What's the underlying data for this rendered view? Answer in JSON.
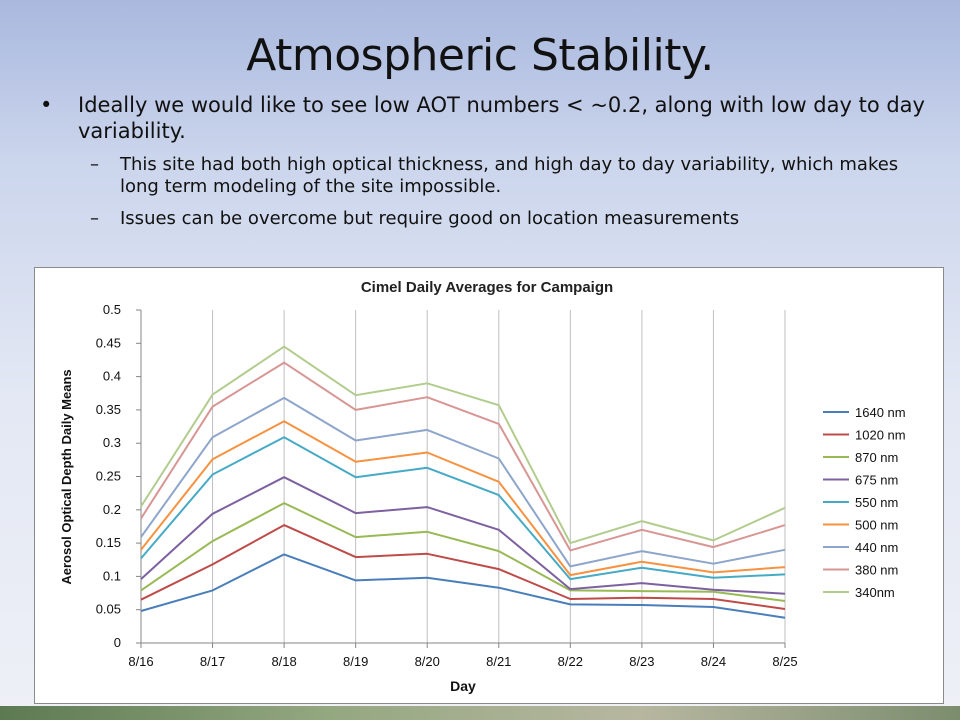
{
  "slide": {
    "title": "Atmospheric Stability.",
    "bullet1": "Ideally we would like to see low AOT numbers < ~0.2, along with low day to day variability.",
    "sub1": "This site had both high optical thickness, and high day to day variability, which makes long term modeling of the site impossible.",
    "sub2": "Issues can be overcome but require good on location measurements",
    "bullet_glyph": "•",
    "dash_glyph": "–"
  },
  "chart_data": {
    "type": "line",
    "title": "Cimel Daily Averages for Campaign",
    "xlabel": "Day",
    "ylabel": "Aerosol Optical Depth Daily Means",
    "categories": [
      "8/16",
      "8/17",
      "8/18",
      "8/19",
      "8/20",
      "8/21",
      "8/22",
      "8/23",
      "8/24",
      "8/25"
    ],
    "ylim": [
      0,
      0.5
    ],
    "yticks": [
      0,
      0.05,
      0.1,
      0.15,
      0.2,
      0.25,
      0.3,
      0.35,
      0.4,
      0.45,
      0.5
    ],
    "ytick_labels": [
      "0",
      "0.05",
      "0.1",
      "0.15",
      "0.2",
      "0.25",
      "0.3",
      "0.35",
      "0.4",
      "0.45",
      "0.5"
    ],
    "grid": "vertical",
    "legend": "right",
    "series": [
      {
        "name": "1640 nm",
        "color": "#4a7ebb",
        "values": [
          0.048,
          0.079,
          0.133,
          0.094,
          0.098,
          0.083,
          0.058,
          0.057,
          0.054,
          0.038
        ]
      },
      {
        "name": "1020 nm",
        "color": "#be4b48",
        "values": [
          0.065,
          0.118,
          0.177,
          0.129,
          0.134,
          0.111,
          0.066,
          0.068,
          0.066,
          0.051
        ]
      },
      {
        "name": "870 nm",
        "color": "#98b954",
        "values": [
          0.079,
          0.153,
          0.21,
          0.159,
          0.167,
          0.138,
          0.079,
          0.078,
          0.077,
          0.063
        ]
      },
      {
        "name": "675 nm",
        "color": "#7d60a0",
        "values": [
          0.096,
          0.194,
          0.249,
          0.195,
          0.204,
          0.17,
          0.081,
          0.09,
          0.08,
          0.074
        ]
      },
      {
        "name": "550 nm",
        "color": "#46aac5",
        "values": [
          0.127,
          0.253,
          0.309,
          0.249,
          0.263,
          0.222,
          0.096,
          0.113,
          0.098,
          0.103
        ]
      },
      {
        "name": "500 nm",
        "color": "#f69240",
        "values": [
          0.14,
          0.276,
          0.333,
          0.272,
          0.286,
          0.242,
          0.102,
          0.122,
          0.106,
          0.114
        ]
      },
      {
        "name": "440 nm",
        "color": "#8ea5cb",
        "values": [
          0.159,
          0.309,
          0.368,
          0.304,
          0.32,
          0.277,
          0.115,
          0.138,
          0.119,
          0.14
        ]
      },
      {
        "name": "380 nm",
        "color": "#d79694",
        "values": [
          0.187,
          0.355,
          0.421,
          0.35,
          0.369,
          0.329,
          0.139,
          0.17,
          0.144,
          0.177
        ]
      },
      {
        "name": "340nm",
        "color": "#b2cc8e",
        "values": [
          0.205,
          0.373,
          0.445,
          0.372,
          0.39,
          0.357,
          0.15,
          0.183,
          0.154,
          0.203
        ]
      }
    ]
  }
}
